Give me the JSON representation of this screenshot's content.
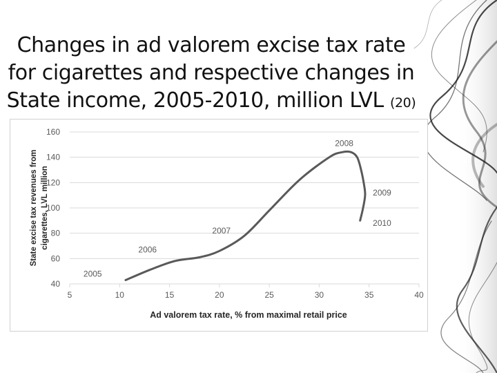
{
  "slide": {
    "title_lines": [
      "Changes in ad valorem excise tax rate",
      "for cigarettes and respective changes in",
      "State income, 2005-2010, million LVL"
    ],
    "title_ref": "(20)"
  },
  "colors": {
    "curve": "#595959",
    "grid": "#d9d9d9",
    "text": "#262626",
    "tick": "#595959"
  },
  "chart_data": {
    "type": "line",
    "title": "",
    "xlabel": "Ad valorem tax rate, % from maximal retail price",
    "ylabel_lines": [
      "State excise tax revenues from",
      "cigarettes, LVL million"
    ],
    "xlim": [
      5,
      40
    ],
    "ylim": [
      40,
      160
    ],
    "xticks": [
      5,
      10,
      15,
      20,
      25,
      30,
      35,
      40
    ],
    "yticks": [
      40,
      60,
      80,
      100,
      120,
      140,
      160
    ],
    "grid": "horizontal",
    "legend": "none",
    "series": [
      {
        "name": "State excise tax revenues",
        "x": [
          10.6,
          13,
          15.5,
          18,
          20,
          22.5,
          25,
          28,
          31,
          32.3,
          33.2,
          33.8,
          34.2,
          34.5,
          34.6,
          34.4,
          34.1
        ],
        "y": [
          43,
          51,
          58,
          61,
          66,
          78,
          98,
          122,
          140,
          144,
          144,
          140,
          130,
          118,
          110,
          100,
          90
        ]
      }
    ],
    "annotations": [
      {
        "text": "2005",
        "x": 7.3,
        "y": 48
      },
      {
        "text": "2006",
        "x": 12.8,
        "y": 67
      },
      {
        "text": "2007",
        "x": 20.2,
        "y": 82
      },
      {
        "text": "2008",
        "x": 32.5,
        "y": 151
      },
      {
        "text": "2009",
        "x": 36.3,
        "y": 112
      },
      {
        "text": "2010",
        "x": 36.3,
        "y": 88
      }
    ]
  }
}
